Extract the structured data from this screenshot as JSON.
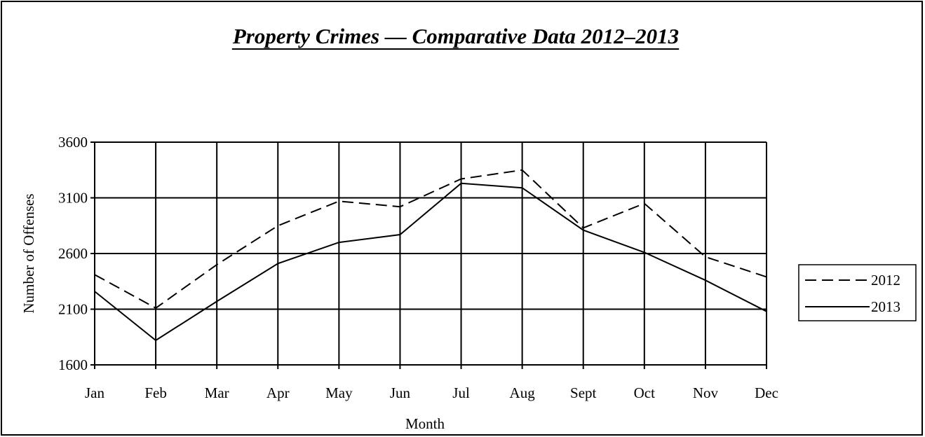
{
  "chart_data": {
    "type": "line",
    "title": "Property Crimes — Comparative Data 2012–2013",
    "xlabel": "Month",
    "ylabel": "Number of Offenses",
    "categories": [
      "Jan",
      "Feb",
      "Mar",
      "Apr",
      "May",
      "Jun",
      "Jul",
      "Aug",
      "Sept",
      "Oct",
      "Nov",
      "Dec"
    ],
    "yticks": [
      "1600",
      "2100",
      "2600",
      "3100",
      "3600"
    ],
    "ylim": [
      1600,
      3600
    ],
    "grid": true,
    "legend_position": "right",
    "series": [
      {
        "name": "2012",
        "line_style": "dashed",
        "values": [
          2410,
          2110,
          2500,
          2850,
          3070,
          3020,
          3270,
          3350,
          2830,
          3050,
          2570,
          2390
        ]
      },
      {
        "name": "2013",
        "line_style": "solid",
        "values": [
          2260,
          1820,
          2170,
          2510,
          2700,
          2770,
          3230,
          3190,
          2810,
          2610,
          2360,
          2080
        ]
      }
    ],
    "colors": {
      "line": "#000000",
      "grid": "#000000",
      "background": "#ffffff"
    }
  }
}
